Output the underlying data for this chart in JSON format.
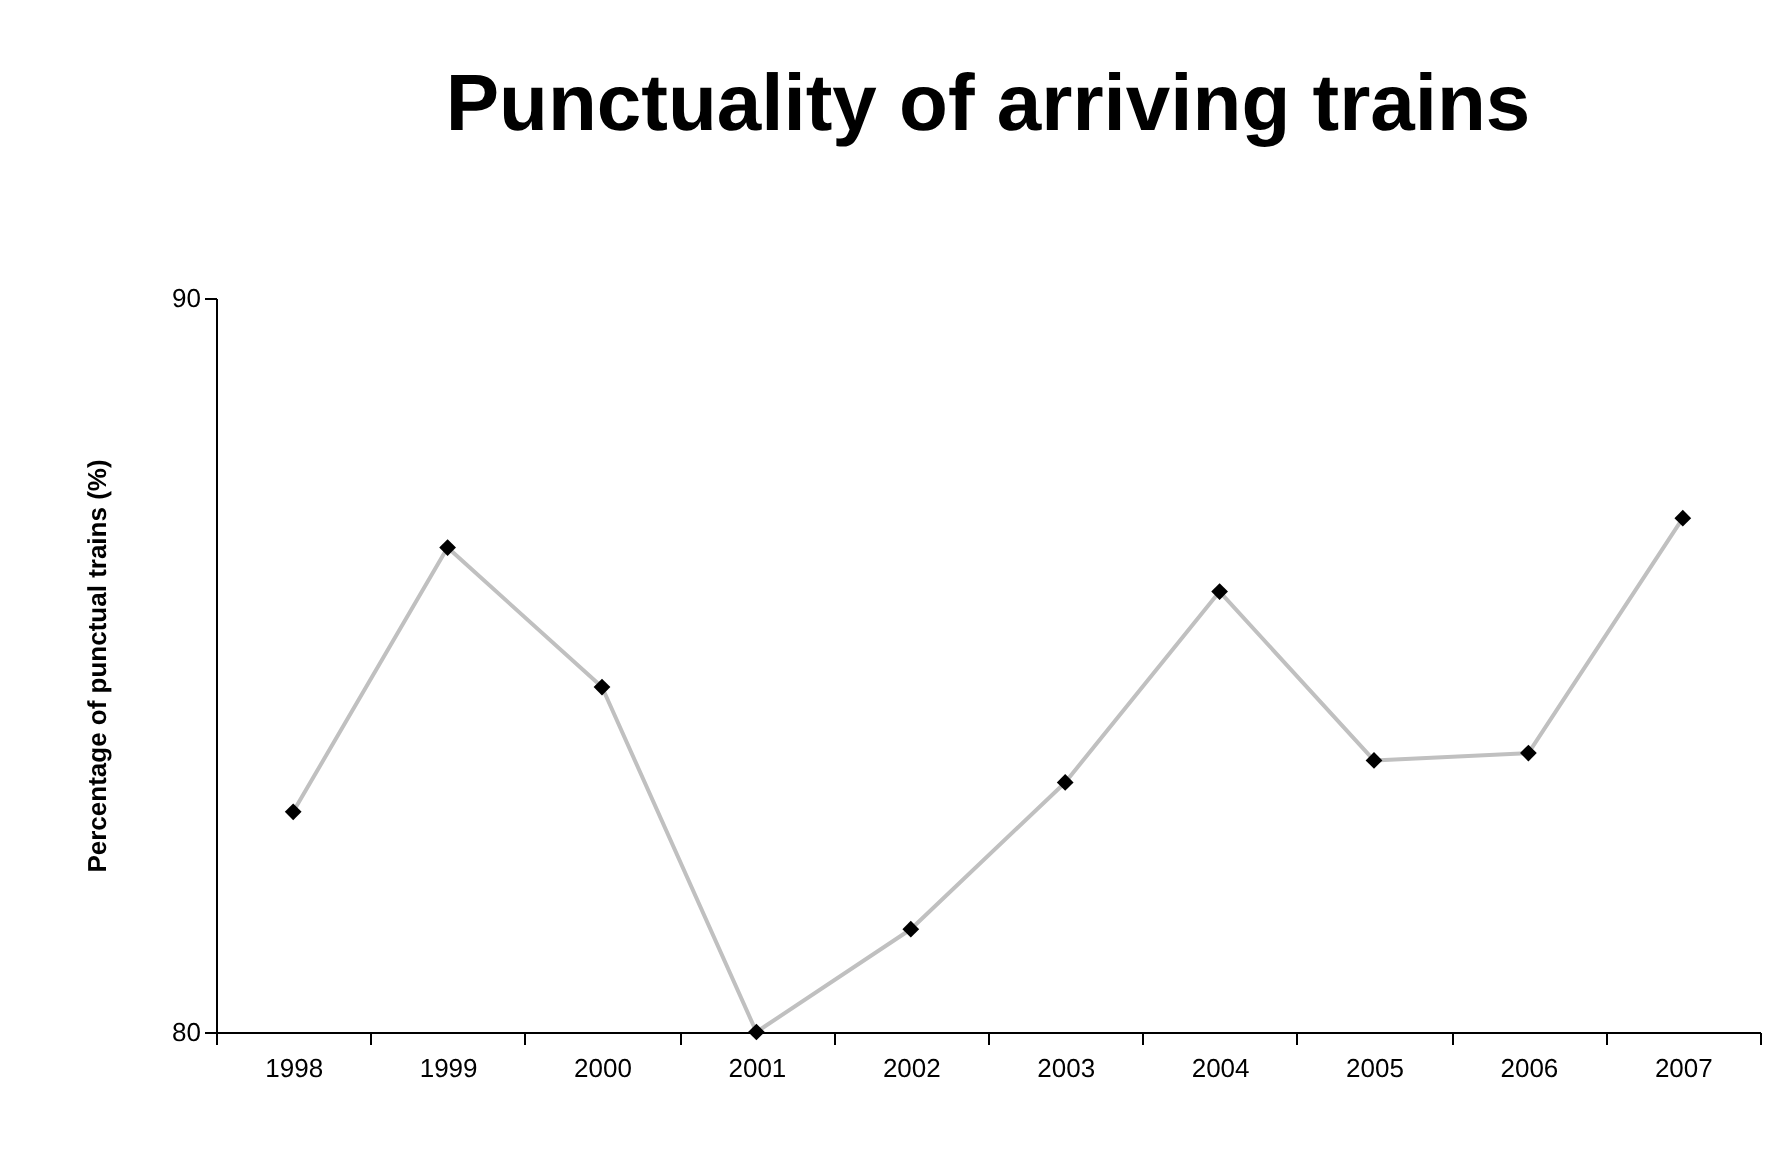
{
  "chart_data": {
    "type": "line",
    "title": "Punctuality of arriving trains",
    "ylabel": "Percentage of punctual trains (%)",
    "categories": [
      "1998",
      "1999",
      "2000",
      "2001",
      "2002",
      "2003",
      "2004",
      "2005",
      "2006",
      "2007"
    ],
    "series": [
      {
        "color": "#c0c0c0",
        "values": [
          83.0,
          86.6,
          84.7,
          80.0,
          81.4,
          83.4,
          86.0,
          83.7,
          83.8,
          87.0
        ]
      }
    ],
    "ylim": [
      80,
      90
    ],
    "yticks": [
      80,
      90
    ],
    "grid": false,
    "marker": "diamond",
    "line_style": "solid"
  }
}
